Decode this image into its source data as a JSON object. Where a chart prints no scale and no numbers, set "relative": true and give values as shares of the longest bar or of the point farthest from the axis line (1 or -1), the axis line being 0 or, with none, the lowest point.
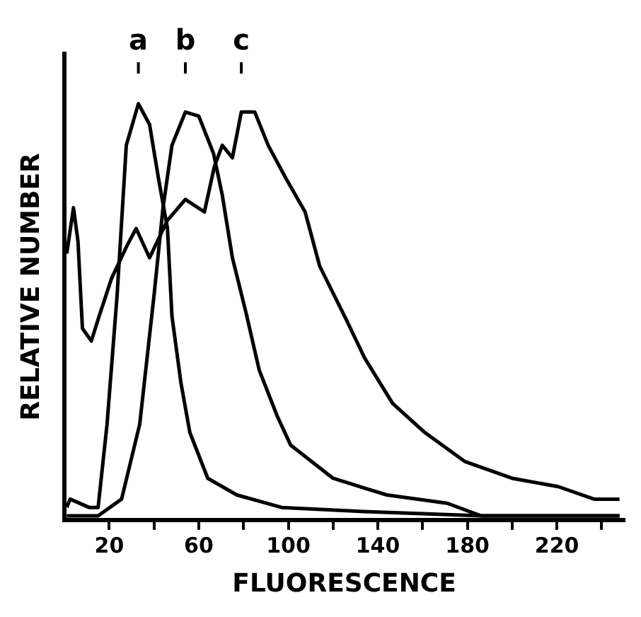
{
  "chart_data": {
    "type": "line",
    "relative": true,
    "xlabel": "FLUORESCENCE",
    "ylabel": "RELATIVE NUMBER",
    "xlim": [
      0,
      250
    ],
    "xticks": [
      20,
      {
        "value": 40,
        "label": null
      },
      60,
      {
        "value": 80,
        "label": null
      },
      100,
      {
        "value": 120,
        "label": null
      },
      140,
      {
        "value": 160,
        "label": null
      },
      180,
      {
        "value": 200,
        "label": null
      },
      220,
      {
        "value": 240,
        "label": null
      }
    ],
    "grid": false,
    "legend": false,
    "marker": "none",
    "line_style": "solid",
    "series": [
      {
        "name": "a",
        "color": "#000000",
        "x": [
          1,
          2.5,
          11,
          15,
          19,
          23.5,
          27.6,
          33,
          38,
          42,
          46,
          48,
          52,
          56,
          64,
          77,
          97,
          134,
          186,
          248
        ],
        "values": [
          0.03,
          0.05,
          0.03,
          0.03,
          0.23,
          0.54,
          0.9,
          1.0,
          0.95,
          0.82,
          0.7,
          0.49,
          0.33,
          0.21,
          0.1,
          0.06,
          0.03,
          0.02,
          0.01,
          0.01
        ]
      },
      {
        "name": "b",
        "color": "#000000",
        "x": [
          1,
          15,
          25.5,
          33.6,
          40,
          44,
          48,
          54,
          60,
          66.6,
          70.5,
          75,
          81,
          87,
          95,
          101,
          120,
          144,
          171,
          186,
          248
        ],
        "values": [
          0.01,
          0.01,
          0.05,
          0.23,
          0.54,
          0.75,
          0.9,
          0.98,
          0.97,
          0.88,
          0.78,
          0.63,
          0.5,
          0.36,
          0.25,
          0.18,
          0.1,
          0.06,
          0.04,
          0.01,
          0.01
        ]
      },
      {
        "name": "c",
        "color": "#000000",
        "x": [
          1,
          4,
          6,
          8,
          12,
          15.5,
          21,
          28,
          32,
          38,
          46,
          54,
          62.5,
          67,
          70.5,
          75,
          79,
          85,
          91,
          99,
          107.5,
          114,
          126,
          134,
          146.6,
          161,
          179,
          200,
          220.6,
          236.6,
          248
        ],
        "values": [
          0.64,
          0.75,
          0.67,
          0.46,
          0.43,
          0.49,
          0.58,
          0.66,
          0.7,
          0.63,
          0.72,
          0.77,
          0.74,
          0.85,
          0.9,
          0.87,
          0.98,
          0.98,
          0.9,
          0.82,
          0.74,
          0.61,
          0.48,
          0.39,
          0.28,
          0.21,
          0.14,
          0.1,
          0.08,
          0.05,
          0.05
        ]
      }
    ]
  }
}
